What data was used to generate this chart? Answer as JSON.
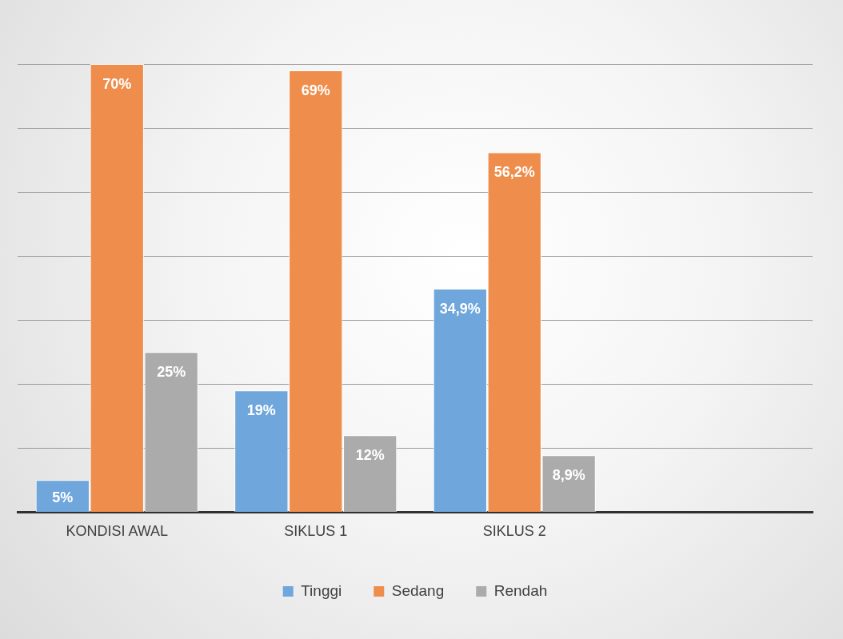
{
  "chart_data": {
    "type": "bar",
    "categories": [
      "KONDISI AWAL",
      "SIKLUS 1",
      "SIKLUS 2",
      null
    ],
    "series": [
      {
        "name": "Tinggi",
        "color": "#6fa6dc",
        "values": [
          5,
          19,
          34.9,
          null
        ],
        "value_labels": [
          "5%",
          "19%",
          "34,9%",
          null
        ]
      },
      {
        "name": "Sedang",
        "color": "#ef8d4c",
        "values": [
          70,
          69,
          56.2,
          null
        ],
        "value_labels": [
          "70%",
          "69%",
          "56,2%",
          null
        ]
      },
      {
        "name": "Rendah",
        "color": "#ababab",
        "values": [
          25,
          12,
          8.9,
          null
        ],
        "value_labels": [
          "25%",
          "12%",
          "8,9%",
          null
        ]
      }
    ],
    "ylim": [
      0,
      70
    ],
    "yticks": [
      {
        "value": 0,
        "label": null
      },
      {
        "value": 10,
        "label": null
      },
      {
        "value": 20,
        "label": null
      },
      {
        "value": 30,
        "label": null
      },
      {
        "value": 40,
        "label": null
      },
      {
        "value": 50,
        "label": null
      },
      {
        "value": 60,
        "label": null
      },
      {
        "value": 70,
        "label": null
      }
    ],
    "tick_labels": "x",
    "grid": "y",
    "legend": "bottom"
  }
}
